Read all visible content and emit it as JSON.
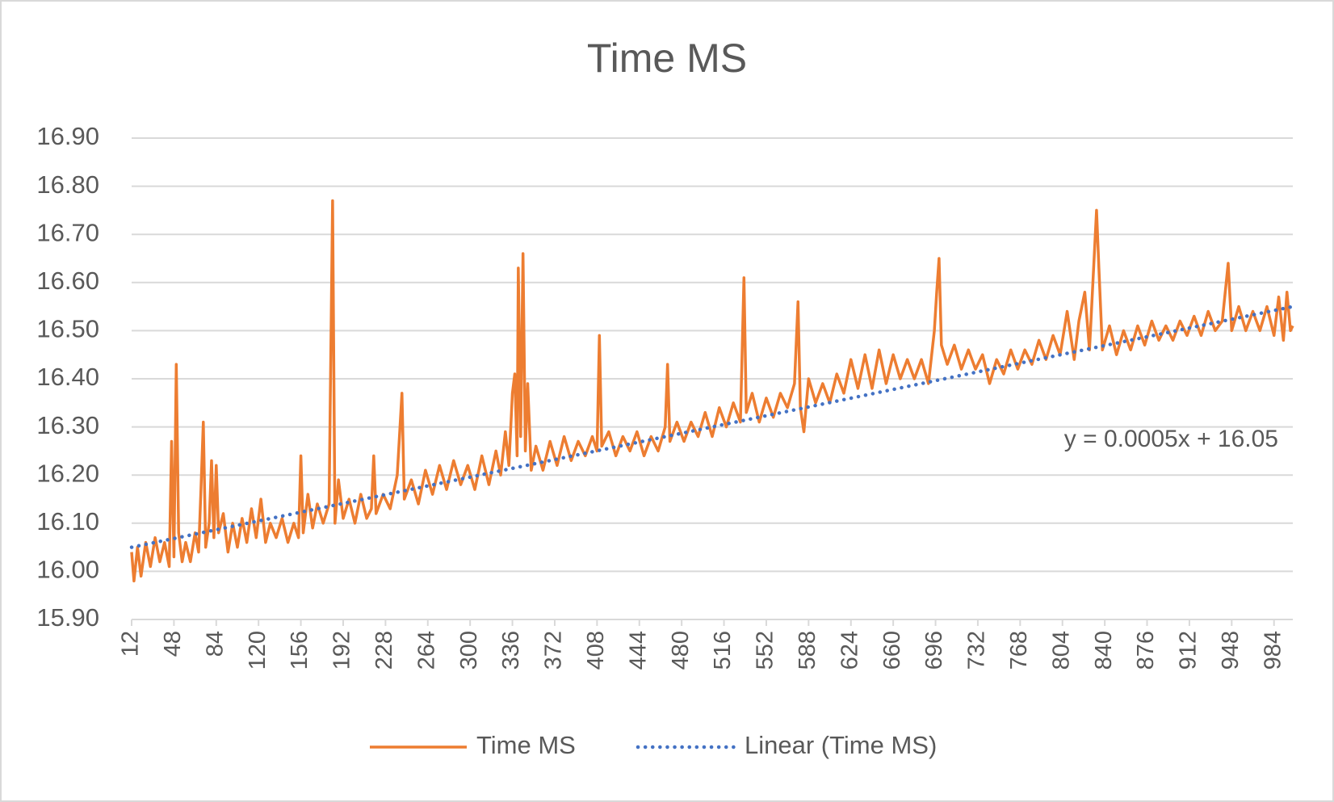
{
  "chart_data": {
    "type": "line",
    "title": "Time MS",
    "annotation": "y = 0.0005x + 16.05",
    "xlim": [
      12,
      1000
    ],
    "xticks": [
      12,
      48,
      84,
      120,
      156,
      192,
      228,
      264,
      300,
      336,
      372,
      408,
      444,
      480,
      516,
      552,
      588,
      624,
      660,
      696,
      732,
      768,
      804,
      840,
      876,
      912,
      948,
      984
    ],
    "ylim": [
      15.9,
      16.9
    ],
    "yticks": [
      {
        "value": 15.9,
        "label": "15.90"
      },
      {
        "value": 16.0,
        "label": "16.00"
      },
      {
        "value": 16.1,
        "label": "16.10"
      },
      {
        "value": 16.2,
        "label": "16.20"
      },
      {
        "value": 16.3,
        "label": "16.30"
      },
      {
        "value": 16.4,
        "label": "16.40"
      },
      {
        "value": 16.5,
        "label": "16.50"
      },
      {
        "value": 16.6,
        "label": "16.60"
      },
      {
        "value": 16.7,
        "label": "16.70"
      },
      {
        "value": 16.8,
        "label": "16.80"
      },
      {
        "value": 16.9,
        "label": "16.90"
      }
    ],
    "grid": true,
    "legend": "bottom",
    "series": [
      {
        "name": "Time MS",
        "color": "#ed7d31",
        "style": "solid",
        "x": [
          12,
          14,
          17,
          20,
          24,
          28,
          32,
          36,
          40,
          44,
          46,
          48,
          50,
          52,
          55,
          58,
          62,
          66,
          69,
          71,
          73,
          75,
          78,
          80,
          82,
          84,
          86,
          90,
          94,
          98,
          102,
          106,
          110,
          114,
          118,
          122,
          126,
          130,
          135,
          140,
          145,
          150,
          154,
          156,
          158,
          162,
          166,
          170,
          175,
          180,
          183,
          185,
          188,
          192,
          197,
          202,
          207,
          212,
          216,
          218,
          220,
          226,
          232,
          238,
          242,
          244,
          250,
          256,
          262,
          268,
          274,
          280,
          286,
          292,
          298,
          304,
          310,
          316,
          322,
          326,
          330,
          333,
          336,
          338,
          340,
          341,
          343,
          345,
          347,
          349,
          352,
          356,
          362,
          368,
          374,
          380,
          386,
          392,
          398,
          404,
          408,
          410,
          412,
          418,
          424,
          430,
          436,
          442,
          448,
          454,
          460,
          466,
          468,
          470,
          476,
          482,
          488,
          494,
          500,
          506,
          512,
          518,
          524,
          530,
          533,
          535,
          540,
          546,
          552,
          558,
          564,
          570,
          576,
          579,
          581,
          584,
          588,
          594,
          600,
          606,
          612,
          618,
          624,
          630,
          636,
          642,
          648,
          654,
          660,
          666,
          672,
          678,
          684,
          690,
          695,
          697,
          699,
          701,
          706,
          712,
          718,
          724,
          730,
          736,
          742,
          748,
          754,
          760,
          766,
          772,
          778,
          784,
          790,
          796,
          802,
          808,
          814,
          818,
          823,
          827,
          833,
          835,
          838,
          844,
          850,
          856,
          862,
          868,
          874,
          880,
          886,
          892,
          898,
          904,
          910,
          916,
          922,
          928,
          934,
          940,
          945,
          948,
          954,
          960,
          966,
          972,
          978,
          984,
          988,
          992,
          995,
          998,
          1000
        ],
        "values": [
          16.04,
          15.98,
          16.05,
          15.99,
          16.06,
          16.01,
          16.07,
          16.02,
          16.06,
          16.01,
          16.27,
          16.03,
          16.43,
          16.08,
          16.02,
          16.06,
          16.02,
          16.08,
          16.04,
          16.17,
          16.31,
          16.05,
          16.1,
          16.23,
          16.07,
          16.22,
          16.08,
          16.12,
          16.04,
          16.1,
          16.05,
          16.11,
          16.06,
          16.13,
          16.07,
          16.15,
          16.06,
          16.1,
          16.07,
          16.11,
          16.06,
          16.1,
          16.07,
          16.24,
          16.08,
          16.16,
          16.09,
          16.14,
          16.1,
          16.14,
          16.77,
          16.1,
          16.19,
          16.11,
          16.15,
          16.1,
          16.16,
          16.11,
          16.13,
          16.24,
          16.12,
          16.16,
          16.13,
          16.2,
          16.37,
          16.15,
          16.19,
          16.14,
          16.21,
          16.16,
          16.22,
          16.17,
          16.23,
          16.18,
          16.22,
          16.17,
          16.24,
          16.18,
          16.25,
          16.2,
          16.29,
          16.22,
          16.37,
          16.41,
          16.24,
          16.63,
          16.28,
          16.66,
          16.25,
          16.39,
          16.21,
          16.26,
          16.21,
          16.27,
          16.22,
          16.28,
          16.23,
          16.27,
          16.24,
          16.28,
          16.25,
          16.49,
          16.26,
          16.29,
          16.24,
          16.28,
          16.25,
          16.29,
          16.24,
          16.28,
          16.25,
          16.3,
          16.43,
          16.27,
          16.31,
          16.27,
          16.31,
          16.28,
          16.33,
          16.28,
          16.34,
          16.3,
          16.35,
          16.31,
          16.61,
          16.33,
          16.37,
          16.31,
          16.36,
          16.32,
          16.37,
          16.34,
          16.39,
          16.56,
          16.34,
          16.29,
          16.4,
          16.35,
          16.39,
          16.35,
          16.41,
          16.37,
          16.44,
          16.38,
          16.45,
          16.38,
          16.46,
          16.39,
          16.45,
          16.4,
          16.44,
          16.4,
          16.44,
          16.39,
          16.5,
          16.58,
          16.65,
          16.47,
          16.43,
          16.47,
          16.42,
          16.46,
          16.42,
          16.45,
          16.39,
          16.44,
          16.41,
          16.46,
          16.42,
          16.46,
          16.43,
          16.48,
          16.44,
          16.49,
          16.45,
          16.54,
          16.44,
          16.52,
          16.58,
          16.46,
          16.75,
          16.63,
          16.46,
          16.51,
          16.45,
          16.5,
          16.46,
          16.51,
          16.47,
          16.52,
          16.48,
          16.51,
          16.48,
          16.52,
          16.49,
          16.53,
          16.49,
          16.54,
          16.5,
          16.52,
          16.64,
          16.5,
          16.55,
          16.5,
          16.54,
          16.5,
          16.55,
          16.49,
          16.57,
          16.48,
          16.58,
          16.5,
          16.51
        ]
      },
      {
        "name": "Linear (Time MS)",
        "color": "#4472c4",
        "style": "dotted",
        "x": [
          12,
          1000
        ],
        "values": [
          16.05,
          16.55
        ]
      }
    ]
  }
}
